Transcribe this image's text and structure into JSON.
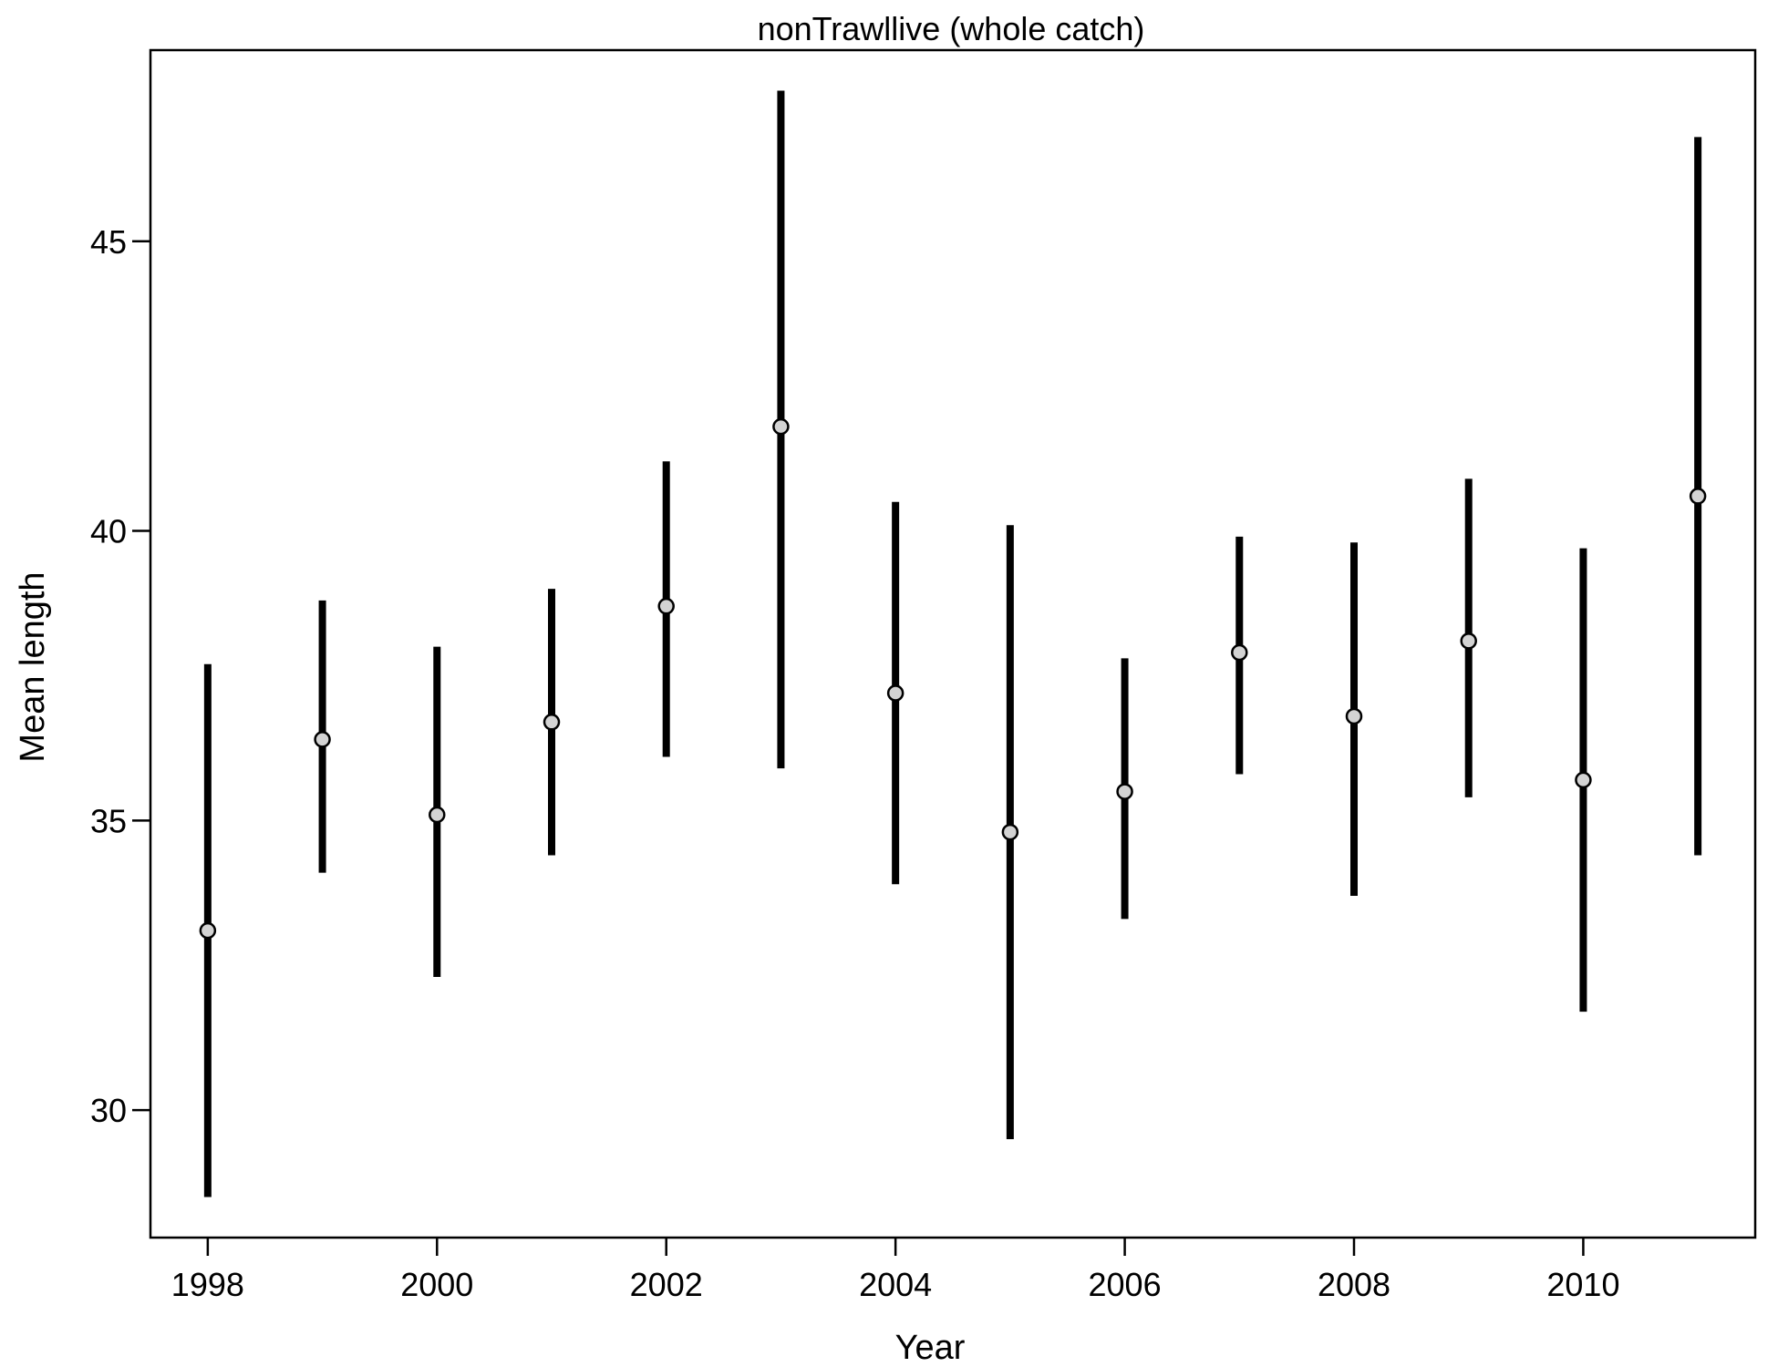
{
  "chart_data": {
    "type": "scatter",
    "title": "nonTrawllive (whole catch)",
    "xlabel": "Year",
    "ylabel": "Mean length",
    "xlim": [
      1997.5,
      2011.5
    ],
    "ylim": [
      27.8,
      48.3
    ],
    "xticks": [
      1998,
      2000,
      2002,
      2004,
      2006,
      2008,
      2010
    ],
    "yticks": [
      30,
      35,
      40,
      45
    ],
    "grid": false,
    "series": [
      {
        "points": [
          {
            "x": 1998,
            "y": 33.1,
            "lower": 28.5,
            "upper": 37.7
          },
          {
            "x": 1999,
            "y": 36.4,
            "lower": 34.1,
            "upper": 38.8
          },
          {
            "x": 2000,
            "y": 35.1,
            "lower": 32.3,
            "upper": 38.0
          },
          {
            "x": 2001,
            "y": 36.7,
            "lower": 34.4,
            "upper": 39.0
          },
          {
            "x": 2002,
            "y": 38.7,
            "lower": 36.1,
            "upper": 41.2
          },
          {
            "x": 2003,
            "y": 41.8,
            "lower": 35.9,
            "upper": 47.6
          },
          {
            "x": 2004,
            "y": 37.2,
            "lower": 33.9,
            "upper": 40.5
          },
          {
            "x": 2005,
            "y": 34.8,
            "lower": 29.5,
            "upper": 40.1
          },
          {
            "x": 2006,
            "y": 35.5,
            "lower": 33.3,
            "upper": 37.8
          },
          {
            "x": 2007,
            "y": 37.9,
            "lower": 35.8,
            "upper": 39.9
          },
          {
            "x": 2008,
            "y": 36.8,
            "lower": 33.7,
            "upper": 39.8
          },
          {
            "x": 2009,
            "y": 38.1,
            "lower": 35.4,
            "upper": 40.9
          },
          {
            "x": 2010,
            "y": 35.7,
            "lower": 31.7,
            "upper": 39.7
          },
          {
            "x": 2011,
            "y": 40.6,
            "lower": 34.4,
            "upper": 46.8
          }
        ]
      }
    ]
  },
  "colors": {
    "point_fill": "#d3d3d3",
    "line": "#000000"
  }
}
